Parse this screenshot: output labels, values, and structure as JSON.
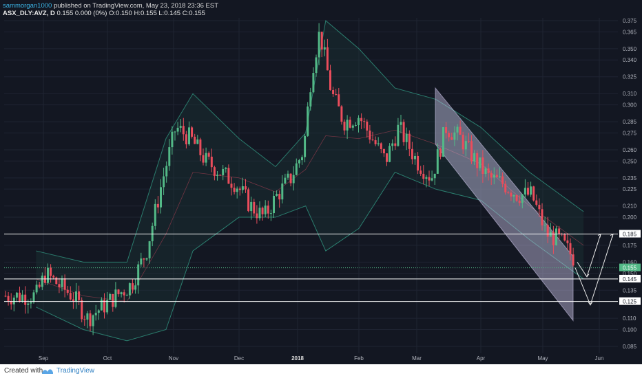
{
  "header": {
    "user": "sammorgan1000",
    "published": "published on TradingView.com, May 23, 2018 23:36 EST",
    "symbol": "ASX_DLY:AVZ, D",
    "quote": "0.155 0.000 (0%) O:0.150 H:0.155 L:0.145 C:0.155"
  },
  "footer": {
    "created": "Created with",
    "brand": "TradingView"
  },
  "colors": {
    "background": "#131722",
    "up": "#53b987",
    "down": "#eb4d5c",
    "grid": "#1f2432",
    "band_line": "#2b7d6e",
    "band_fill": "#1e3a3a",
    "channel": "#c9c3e6",
    "hline": "#ffffff",
    "last_price": "#53b987"
  },
  "chart_data": {
    "type": "candlestick",
    "ylim": [
      0.075,
      0.375
    ],
    "y_ticks": [
      0.085,
      0.1,
      0.11,
      0.125,
      0.135,
      0.145,
      0.15,
      0.16,
      0.175,
      0.185,
      0.2,
      0.21,
      0.225,
      0.235,
      0.25,
      0.26,
      0.275,
      0.285,
      0.3,
      0.31,
      0.325,
      0.34,
      0.35,
      0.365,
      0.375
    ],
    "x_ticks": [
      "Sep",
      "Oct",
      "Nov",
      "Dec",
      "2018",
      "Feb",
      "Mar",
      "Apr",
      "May",
      "Jun"
    ],
    "horizontal_lines": [
      0.185,
      0.145,
      0.125
    ],
    "highlighted_labels": [
      0.185,
      0.155,
      0.145,
      0.125
    ],
    "last_price": 0.155,
    "trend_channel": {
      "upper": [
        [
          "Mar",
          0.315
        ],
        [
          "May",
          0.165
        ]
      ],
      "lower": [
        [
          "Mar",
          0.265
        ],
        [
          "May",
          0.108
        ]
      ]
    },
    "annotations": [
      "arrow down to 0.145 then up to 0.185",
      "arrow down to 0.125 then up to 0.185"
    ],
    "price_path": [
      [
        "Aug 28",
        0.13
      ],
      [
        "Sep 2",
        0.15
      ],
      [
        "Sep 8",
        0.14
      ],
      [
        "Sep 15",
        0.13
      ],
      [
        "Sep 22",
        0.11
      ],
      [
        "Sep 29",
        0.12
      ],
      [
        "Oct 5",
        0.13
      ],
      [
        "Oct 12",
        0.14
      ],
      [
        "Oct 19",
        0.17
      ],
      [
        "Oct 26",
        0.23
      ],
      [
        "Nov 2",
        0.28
      ],
      [
        "Nov 9",
        0.27
      ],
      [
        "Nov 16",
        0.25
      ],
      [
        "Nov 23",
        0.24
      ],
      [
        "Nov 30",
        0.23
      ],
      [
        "Dec 7",
        0.21
      ],
      [
        "Dec 14",
        0.2
      ],
      [
        "Dec 21",
        0.22
      ],
      [
        "Dec 28",
        0.235
      ],
      [
        "Jan 4",
        0.26
      ],
      [
        "Jan 8",
        0.33
      ],
      [
        "Jan 12",
        0.365
      ],
      [
        "Jan 18",
        0.31
      ],
      [
        "Jan 24",
        0.285
      ],
      [
        "Feb 1",
        0.29
      ],
      [
        "Feb 8",
        0.27
      ],
      [
        "Feb 15",
        0.25
      ],
      [
        "Feb 22",
        0.28
      ],
      [
        "Mar 1",
        0.25
      ],
      [
        "Mar 8",
        0.235
      ],
      [
        "Mar 15",
        0.28
      ],
      [
        "Mar 22",
        0.27
      ],
      [
        "Mar 29",
        0.25
      ],
      [
        "Apr 5",
        0.235
      ],
      [
        "Apr 12",
        0.23
      ],
      [
        "Apr 19",
        0.22
      ],
      [
        "Apr 26",
        0.22
      ],
      [
        "May 3",
        0.185
      ],
      [
        "May 10",
        0.18
      ],
      [
        "May 17",
        0.165
      ],
      [
        "May 23",
        0.155
      ]
    ],
    "bollinger": {
      "upper": [
        [
          "Aug 28",
          0.17
        ],
        [
          "Sep 20",
          0.16
        ],
        [
          "Oct 10",
          0.16
        ],
        [
          "Oct 28",
          0.27
        ],
        [
          "Nov 10",
          0.31
        ],
        [
          "Dec 1",
          0.27
        ],
        [
          "Dec 20",
          0.245
        ],
        [
          "Jan 5",
          0.275
        ],
        [
          "Jan 15",
          0.375
        ],
        [
          "Feb 1",
          0.35
        ],
        [
          "Feb 20",
          0.315
        ],
        [
          "Mar 10",
          0.305
        ],
        [
          "Apr 1",
          0.28
        ],
        [
          "Apr 25",
          0.24
        ],
        [
          "May 23",
          0.205
        ]
      ],
      "lower": [
        [
          "Aug 28",
          0.12
        ],
        [
          "Sep 20",
          0.1
        ],
        [
          "Oct 10",
          0.09
        ],
        [
          "Oct 28",
          0.1
        ],
        [
          "Nov 10",
          0.17
        ],
        [
          "Dec 1",
          0.2
        ],
        [
          "Dec 20",
          0.2
        ],
        [
          "Jan 5",
          0.21
        ],
        [
          "Jan 15",
          0.17
        ],
        [
          "Feb 1",
          0.19
        ],
        [
          "Feb 20",
          0.24
        ],
        [
          "Mar 10",
          0.225
        ],
        [
          "Apr 1",
          0.215
        ],
        [
          "Apr 25",
          0.18
        ],
        [
          "May 23",
          0.145
        ]
      ]
    }
  }
}
